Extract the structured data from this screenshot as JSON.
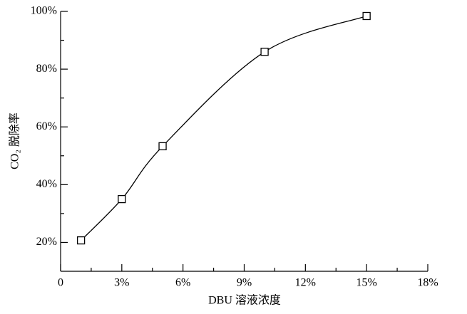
{
  "chart_data": {
    "type": "line",
    "xlabel": "DBU 溶液浓度",
    "ylabel": "CO₂ 脱除率",
    "x": [
      1,
      3,
      5,
      10,
      15
    ],
    "series": [
      {
        "color": "#000000",
        "values": [
          20.7,
          35,
          53.3,
          86,
          98.4
        ]
      }
    ],
    "xlim": [
      0,
      18
    ],
    "xticks": [
      0,
      {
        "value": 3,
        "label": "3%"
      },
      {
        "value": 6,
        "label": "6%"
      },
      {
        "value": 9,
        "label": "9%"
      },
      {
        "value": 12,
        "label": "12%"
      },
      {
        "value": 15,
        "label": "15%"
      },
      {
        "value": 18,
        "label": "18%"
      }
    ],
    "xminorticks": [
      1.5,
      4.5,
      7.5,
      10.5,
      13.5,
      16.5
    ],
    "ylim": [
      10,
      100
    ],
    "yticks": [
      {
        "value": 20,
        "label": "20%"
      },
      {
        "value": 40,
        "label": "40%"
      },
      {
        "value": 60,
        "label": "60%"
      },
      {
        "value": 80,
        "label": "80%"
      },
      {
        "value": 100,
        "label": "100%"
      }
    ],
    "yminorticks": [
      30,
      50,
      70,
      90
    ],
    "smooth": true,
    "marker": "square",
    "grid": false
  }
}
